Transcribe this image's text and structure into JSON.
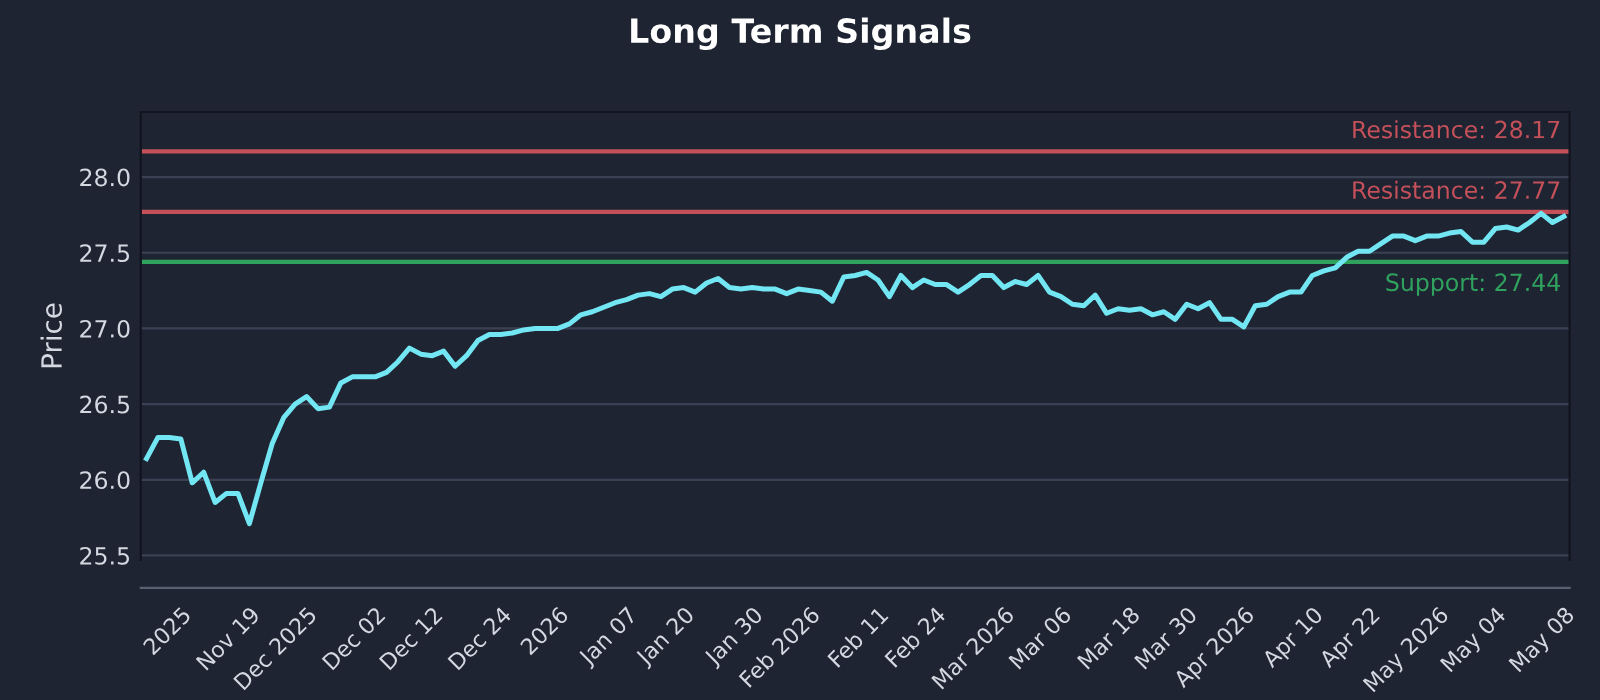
{
  "chart_data": {
    "type": "line",
    "title": "Long Term Signals",
    "ylabel": "Price",
    "categories": [
      null,
      null,
      null,
      "2025",
      null,
      null,
      null,
      null,
      null,
      "Nov 19",
      null,
      null,
      null,
      null,
      "Dec 2025",
      null,
      null,
      null,
      null,
      null,
      "Dec 02",
      null,
      null,
      null,
      null,
      "Dec 12",
      null,
      null,
      null,
      null,
      null,
      "Dec 24",
      null,
      null,
      null,
      null,
      "2026",
      null,
      null,
      null,
      null,
      null,
      "Jan 07",
      null,
      null,
      null,
      null,
      "Jan 20",
      null,
      null,
      null,
      null,
      null,
      "Jan 30",
      null,
      null,
      null,
      null,
      "Feb 2026",
      null,
      null,
      null,
      null,
      null,
      "Feb 11",
      null,
      null,
      null,
      null,
      "Feb 24",
      null,
      null,
      null,
      null,
      null,
      "Mar 2026",
      null,
      null,
      null,
      null,
      "Mar 06",
      null,
      null,
      null,
      null,
      null,
      "Mar 18",
      null,
      null,
      null,
      null,
      "Mar 30",
      null,
      null,
      null,
      null,
      "Apr 2026",
      null,
      null,
      null,
      null,
      null,
      "Apr 10",
      null,
      null,
      null,
      null,
      "Apr 22",
      null,
      null,
      null,
      null,
      null,
      "May 2026",
      null,
      null,
      null,
      null,
      "May 04",
      null,
      null,
      null,
      null,
      null,
      "May 08"
    ],
    "series": [
      {
        "color": "#72e6f2",
        "values": [
          26.14,
          26.28,
          26.28,
          26.27,
          25.98,
          26.05,
          25.85,
          25.91,
          25.91,
          25.71,
          25.98,
          26.24,
          26.41,
          26.5,
          26.55,
          26.47,
          26.48,
          26.64,
          26.68,
          26.68,
          26.68,
          26.71,
          26.78,
          26.87,
          26.83,
          26.82,
          26.85,
          26.75,
          26.82,
          26.92,
          26.96,
          26.96,
          26.97,
          26.99,
          27.0,
          27.0,
          27.0,
          27.03,
          27.09,
          27.11,
          27.14,
          27.17,
          27.19,
          27.22,
          27.23,
          27.21,
          27.26,
          27.27,
          27.24,
          27.3,
          27.33,
          27.27,
          27.26,
          27.27,
          27.26,
          27.26,
          27.23,
          27.26,
          27.25,
          27.24,
          27.18,
          27.34,
          27.35,
          27.37,
          27.32,
          27.21,
          27.35,
          27.27,
          27.32,
          27.29,
          27.29,
          27.24,
          27.29,
          27.35,
          27.35,
          27.27,
          27.31,
          27.29,
          27.35,
          27.24,
          27.21,
          27.16,
          27.15,
          27.22,
          27.1,
          27.13,
          27.12,
          27.13,
          27.09,
          27.11,
          27.06,
          27.16,
          27.13,
          27.17,
          27.06,
          27.06,
          27.01,
          27.15,
          27.16,
          27.21,
          27.24,
          27.24,
          27.35,
          27.38,
          27.4,
          27.47,
          27.51,
          27.51,
          27.56,
          27.61,
          27.61,
          27.58,
          27.61,
          27.61,
          27.63,
          27.64,
          27.57,
          27.57,
          27.66,
          27.67,
          27.65,
          27.7,
          27.76,
          27.7,
          27.74
        ]
      }
    ],
    "ylim": [
      25.47,
      28.43
    ],
    "yticks": [
      25.5,
      {
        "value": 26,
        "label": "26.0"
      },
      26.5,
      {
        "value": 27,
        "label": "27.0"
      },
      27.5,
      {
        "value": 28,
        "label": "28.0"
      }
    ],
    "ref_lines": [
      {
        "axis": "y",
        "value": 28.17,
        "label": "Resistance: 28.17",
        "color": "#c4505a"
      },
      {
        "axis": "y",
        "value": 27.77,
        "label": "Resistance: 27.77",
        "color": "#c4505a"
      },
      {
        "axis": "y",
        "value": 27.44,
        "label": "Support: 27.44",
        "color": "#2fa35e"
      }
    ],
    "grid": "y",
    "legend": false
  }
}
